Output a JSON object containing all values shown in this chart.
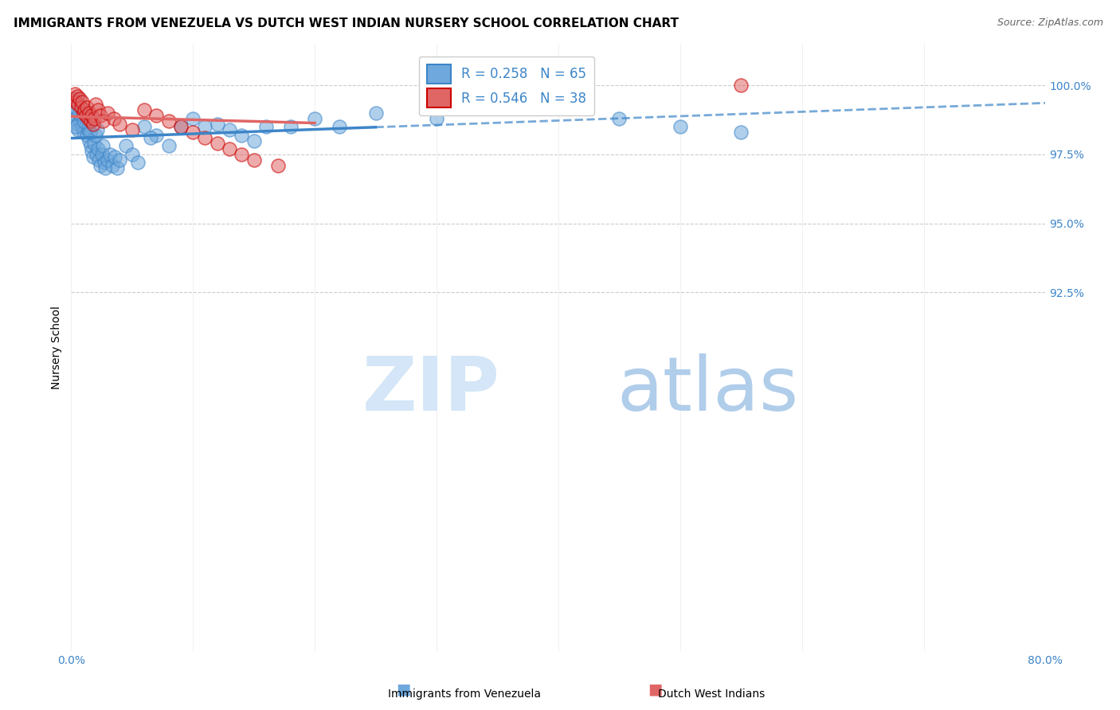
{
  "title": "IMMIGRANTS FROM VENEZUELA VS DUTCH WEST INDIAN NURSERY SCHOOL CORRELATION CHART",
  "source": "Source: ZipAtlas.com",
  "ylabel": "Nursery School",
  "xmin": 0.0,
  "xmax": 80.0,
  "ymin": 79.5,
  "ymax": 101.5,
  "ytick_positions": [
    92.5,
    95.0,
    97.5,
    100.0
  ],
  "ytick_labels": [
    "92.5%",
    "95.0%",
    "97.5%",
    "100.0%"
  ],
  "xtick_positions": [
    0,
    10,
    20,
    30,
    40,
    50,
    60,
    70,
    80
  ],
  "xtick_labels": [
    "0.0%",
    "",
    "",
    "",
    "",
    "",
    "",
    "",
    "80.0%"
  ],
  "blue_color": "#6fa8dc",
  "pink_color": "#e06666",
  "blue_edge_color": "#3d85c8",
  "pink_edge_color": "#cc0000",
  "blue_line_color": "#3d85c8",
  "pink_line_color": "#e06666",
  "legend_blue_label": "R = 0.258   N = 65",
  "legend_pink_label": "R = 0.546   N = 38",
  "blue_scatter_x": [
    0.2,
    0.3,
    0.4,
    0.5,
    0.5,
    0.6,
    0.7,
    0.8,
    0.9,
    1.0,
    1.0,
    1.1,
    1.2,
    1.3,
    1.4,
    1.5,
    1.6,
    1.7,
    1.8,
    1.9,
    2.0,
    2.1,
    2.2,
    2.3,
    2.4,
    2.5,
    2.6,
    2.7,
    2.8,
    3.0,
    3.2,
    3.4,
    3.6,
    3.8,
    4.0,
    4.5,
    5.0,
    5.5,
    6.0,
    7.0,
    8.0,
    9.0,
    10.0,
    11.0,
    12.0,
    13.0,
    14.0,
    15.0,
    16.0,
    18.0,
    20.0,
    22.0,
    25.0,
    30.0,
    35.0,
    40.0,
    45.0,
    50.0,
    55.0,
    0.35,
    0.65,
    1.05,
    1.55,
    2.15,
    6.5
  ],
  "blue_scatter_y": [
    99.0,
    99.2,
    98.8,
    98.6,
    99.5,
    98.4,
    98.7,
    98.9,
    98.5,
    99.1,
    98.3,
    99.0,
    98.6,
    98.2,
    98.4,
    98.0,
    97.8,
    97.6,
    97.4,
    97.9,
    98.2,
    97.5,
    97.7,
    97.3,
    97.1,
    97.5,
    97.8,
    97.2,
    97.0,
    97.3,
    97.5,
    97.1,
    97.4,
    97.0,
    97.3,
    97.8,
    97.5,
    97.2,
    98.5,
    98.2,
    97.8,
    98.5,
    98.8,
    98.5,
    98.6,
    98.4,
    98.2,
    98.0,
    98.5,
    98.5,
    98.8,
    98.5,
    99.0,
    98.8,
    99.2,
    99.5,
    98.8,
    98.5,
    98.3,
    98.5,
    99.0,
    98.7,
    98.3,
    98.4,
    98.1
  ],
  "pink_scatter_x": [
    0.2,
    0.3,
    0.4,
    0.5,
    0.6,
    0.7,
    0.8,
    0.9,
    1.0,
    1.1,
    1.2,
    1.3,
    1.4,
    1.5,
    1.6,
    1.7,
    1.8,
    1.9,
    2.0,
    2.2,
    2.4,
    2.6,
    3.0,
    3.5,
    4.0,
    5.0,
    6.0,
    7.0,
    8.0,
    9.0,
    10.0,
    11.0,
    12.0,
    13.0,
    14.0,
    15.0,
    17.0,
    55.0
  ],
  "pink_scatter_y": [
    99.5,
    99.7,
    99.4,
    99.6,
    99.3,
    99.5,
    99.2,
    99.4,
    99.0,
    99.1,
    98.9,
    99.2,
    98.8,
    99.0,
    98.7,
    98.9,
    98.6,
    98.8,
    99.3,
    99.1,
    98.9,
    98.7,
    99.0,
    98.8,
    98.6,
    98.4,
    99.1,
    98.9,
    98.7,
    98.5,
    98.3,
    98.1,
    97.9,
    97.7,
    97.5,
    97.3,
    97.1,
    100.0
  ],
  "watermark_zip": "ZIP",
  "watermark_atlas": "atlas",
  "watermark_color": "#c9daf8",
  "grid_color": "#cccccc",
  "axis_label_color": "#3d85c8",
  "grid_dashed_color": "#aaaaaa",
  "title_fontsize": 11,
  "tick_fontsize": 10,
  "legend_fontsize": 12
}
